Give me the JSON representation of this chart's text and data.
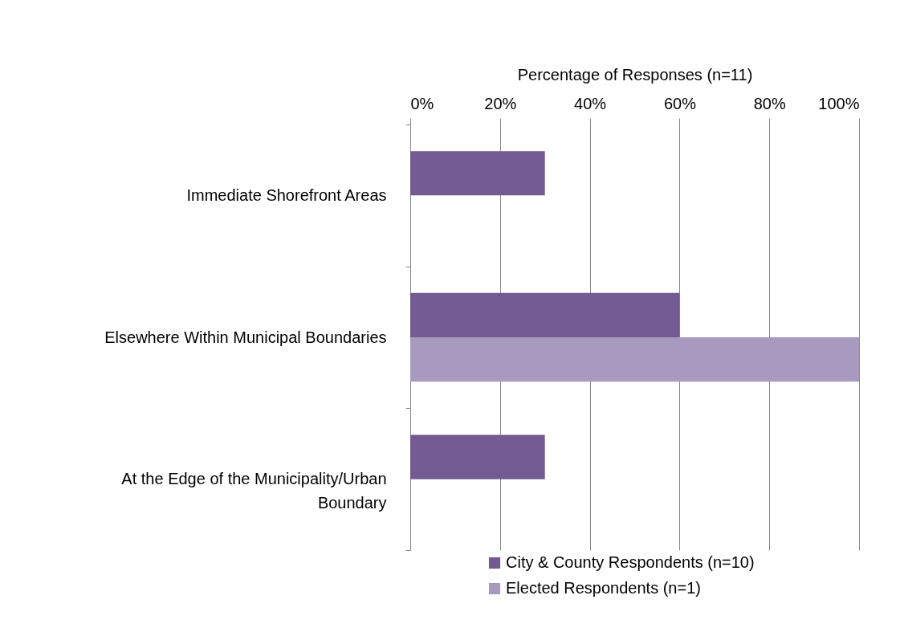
{
  "chart_data": {
    "type": "bar",
    "orientation": "horizontal",
    "xlabel": "Percentage of Responses (n=11)",
    "categories": [
      "Immediate Shorefront Areas",
      "Elsewhere Within Municipal Boundaries",
      "At the Edge of the Municipality/Urban Boundary"
    ],
    "series": [
      {
        "name": "City & County Respondents (n=10)",
        "color": "#735a92",
        "values": [
          30,
          60,
          30
        ]
      },
      {
        "name": "Elected Respondents (n=1)",
        "color": "#a899bf",
        "values": [
          null,
          100,
          null
        ]
      }
    ],
    "xlim": [
      0,
      100
    ],
    "xticks": [
      {
        "value": 0,
        "label": "0%"
      },
      {
        "value": 20,
        "label": "20%"
      },
      {
        "value": 40,
        "label": "40%"
      },
      {
        "value": 60,
        "label": "60%"
      },
      {
        "value": 80,
        "label": "80%"
      },
      {
        "value": 100,
        "label": "100%"
      }
    ],
    "grid": "x",
    "legend": "bottom"
  }
}
